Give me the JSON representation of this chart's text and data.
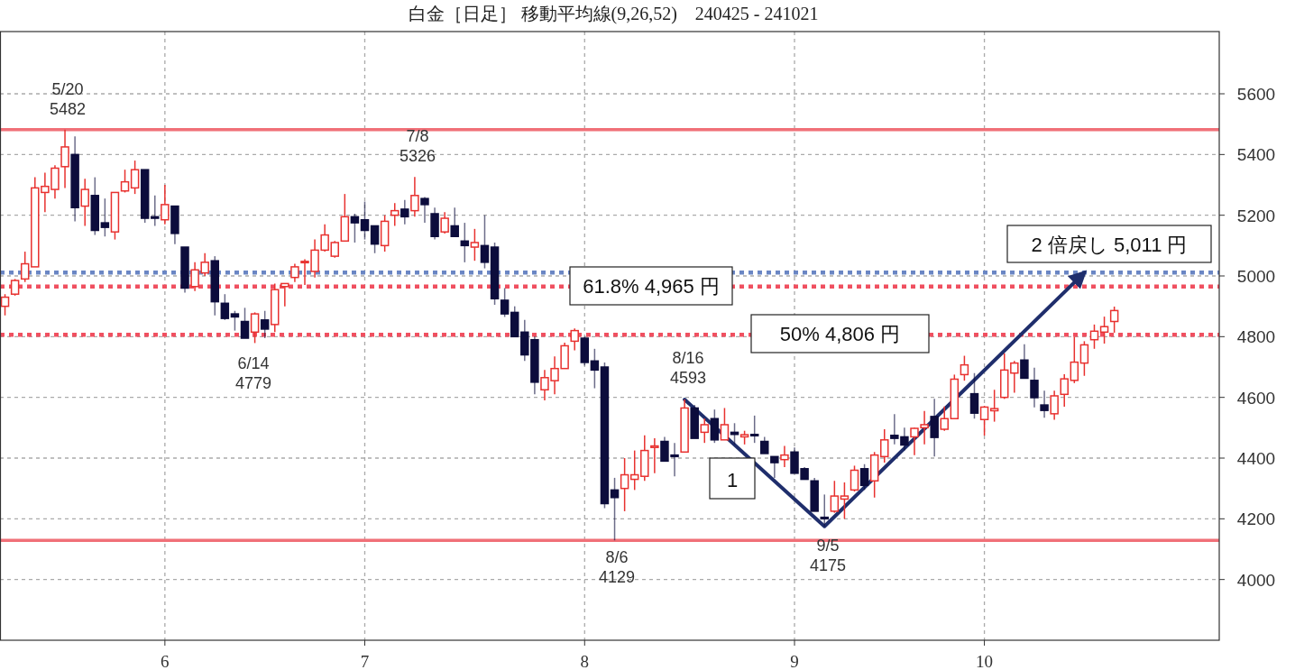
{
  "chart_data": {
    "type": "candlestick",
    "title": "白金［日足］ 移動平均線(9,26,52)　240425 - 241021",
    "categories": [
      null,
      null,
      null,
      null,
      null,
      null,
      null,
      null,
      null,
      null,
      null,
      null,
      null,
      null,
      null,
      null,
      "6",
      null,
      null,
      null,
      null,
      null,
      null,
      null,
      null,
      null,
      null,
      null,
      null,
      null,
      null,
      null,
      null,
      null,
      null,
      null,
      "7",
      null,
      null,
      null,
      null,
      null,
      null,
      null,
      null,
      null,
      null,
      null,
      null,
      null,
      null,
      null,
      null,
      null,
      null,
      null,
      null,
      null,
      "8",
      null,
      null,
      null,
      null,
      null,
      null,
      null,
      null,
      null,
      null,
      null,
      null,
      null,
      null,
      null,
      null,
      null,
      null,
      null,
      null,
      "9",
      null,
      null,
      null,
      null,
      null,
      null,
      null,
      null,
      null,
      null,
      null,
      null,
      null,
      null,
      null,
      null,
      null,
      null,
      "10",
      null,
      null,
      null,
      null,
      null,
      null,
      null,
      null,
      null,
      null,
      null,
      null,
      null,
      null,
      null,
      null,
      null,
      null,
      null,
      null,
      null,
      null,
      null
    ],
    "ohlc": [
      [
        4900,
        4940,
        4870,
        4930
      ],
      [
        4940,
        4990,
        4935,
        4985
      ],
      [
        4990,
        5080,
        4980,
        5040
      ],
      [
        5030,
        5325,
        5030,
        5290
      ],
      [
        5275,
        5340,
        5210,
        5295
      ],
      [
        5285,
        5365,
        5255,
        5355
      ],
      [
        5360,
        5482,
        5290,
        5425
      ],
      [
        5400,
        5460,
        5180,
        5225
      ],
      [
        5230,
        5320,
        5165,
        5285
      ],
      [
        5265,
        5325,
        5135,
        5150
      ],
      [
        5175,
        5255,
        5130,
        5160
      ],
      [
        5145,
        5275,
        5120,
        5275
      ],
      [
        5280,
        5350,
        5275,
        5310
      ],
      [
        5290,
        5380,
        5270,
        5350
      ],
      [
        5350,
        5350,
        5175,
        5190
      ],
      [
        5195,
        5265,
        5165,
        5190
      ],
      [
        5185,
        5300,
        5170,
        5235
      ],
      [
        5230,
        5230,
        5105,
        5140
      ],
      [
        5095,
        5095,
        4945,
        4960
      ],
      [
        4965,
        5045,
        4950,
        5020
      ],
      [
        5010,
        5075,
        5000,
        5045
      ],
      [
        5050,
        5065,
        4870,
        4915
      ],
      [
        4910,
        4940,
        4855,
        4860
      ],
      [
        4875,
        4885,
        4820,
        4865
      ],
      [
        4850,
        4895,
        4795,
        4795
      ],
      [
        4815,
        4880,
        4779,
        4875
      ],
      [
        4855,
        4885,
        4795,
        4825
      ],
      [
        4840,
        4975,
        4815,
        4955
      ],
      [
        4965,
        4975,
        4900,
        4975
      ],
      [
        4995,
        5040,
        4980,
        5030
      ],
      [
        5045,
        5055,
        4970,
        5048
      ],
      [
        5015,
        5120,
        4995,
        5085
      ],
      [
        5085,
        5170,
        5080,
        5135
      ],
      [
        5065,
        5115,
        5060,
        5110
      ],
      [
        5115,
        5270,
        5115,
        5195
      ],
      [
        5195,
        5205,
        5110,
        5175
      ],
      [
        5185,
        5245,
        5120,
        5150
      ],
      [
        5165,
        5165,
        5075,
        5105
      ],
      [
        5100,
        5200,
        5080,
        5180
      ],
      [
        5200,
        5240,
        5165,
        5215
      ],
      [
        5220,
        5250,
        5170,
        5195
      ],
      [
        5215,
        5326,
        5195,
        5265
      ],
      [
        5255,
        5260,
        5175,
        5235
      ],
      [
        5205,
        5225,
        5120,
        5130
      ],
      [
        5145,
        5210,
        5140,
        5190
      ],
      [
        5165,
        5225,
        5130,
        5130
      ],
      [
        5115,
        5175,
        5045,
        5100
      ],
      [
        5095,
        5155,
        5050,
        5110
      ],
      [
        5100,
        5200,
        5025,
        5045
      ],
      [
        5095,
        5110,
        4905,
        4925
      ],
      [
        4920,
        4960,
        4865,
        4875
      ],
      [
        4880,
        4900,
        4800,
        4800
      ],
      [
        4815,
        4855,
        4720,
        4740
      ],
      [
        4790,
        4800,
        4610,
        4650
      ],
      [
        4625,
        4690,
        4590,
        4665
      ],
      [
        4655,
        4735,
        4610,
        4695
      ],
      [
        4695,
        4780,
        4695,
        4770
      ],
      [
        4785,
        4827,
        4755,
        4820
      ],
      [
        4795,
        4800,
        4705,
        4715
      ],
      [
        4720,
        4760,
        4630,
        4690
      ],
      [
        4700,
        4715,
        4235,
        4250
      ],
      [
        4295,
        4335,
        4129,
        4270
      ],
      [
        4300,
        4400,
        4225,
        4345
      ],
      [
        4330,
        4425,
        4295,
        4345
      ],
      [
        4340,
        4475,
        4325,
        4425
      ],
      [
        4435,
        4465,
        4350,
        4440
      ],
      [
        4455,
        4470,
        4390,
        4390
      ],
      [
        4410,
        4450,
        4340,
        4405
      ],
      [
        4420,
        4593,
        4420,
        4565
      ],
      [
        4565,
        4575,
        4465,
        4465
      ],
      [
        4485,
        4530,
        4450,
        4510
      ],
      [
        4530,
        4560,
        4450,
        4460
      ],
      [
        4460,
        4565,
        4460,
        4510
      ],
      [
        4485,
        4515,
        4445,
        4478
      ],
      [
        4470,
        4490,
        4445,
        4477
      ],
      [
        4478,
        4540,
        4450,
        4475
      ],
      [
        4455,
        4470,
        4415,
        4415
      ],
      [
        4405,
        4405,
        4335,
        4385
      ],
      [
        4395,
        4440,
        4370,
        4410
      ],
      [
        4420,
        4435,
        4350,
        4350
      ],
      [
        4365,
        4370,
        4330,
        4330
      ],
      [
        4325,
        4335,
        4225,
        4225
      ],
      [
        4205,
        4280,
        4175,
        4200
      ],
      [
        4225,
        4325,
        4220,
        4275
      ],
      [
        4265,
        4320,
        4200,
        4275
      ],
      [
        4295,
        4375,
        4290,
        4360
      ],
      [
        4365,
        4380,
        4295,
        4310
      ],
      [
        4325,
        4420,
        4270,
        4410
      ],
      [
        4405,
        4495,
        4385,
        4460
      ],
      [
        4475,
        4545,
        4445,
        4465
      ],
      [
        4470,
        4500,
        4425,
        4443
      ],
      [
        4470,
        4500,
        4410,
        4498
      ],
      [
        4500,
        4555,
        4445,
        4510
      ],
      [
        4537,
        4595,
        4405,
        4468
      ],
      [
        4495,
        4570,
        4490,
        4530
      ],
      [
        4530,
        4675,
        4530,
        4660
      ],
      [
        4675,
        4737,
        4655,
        4707
      ],
      [
        4612,
        4680,
        4530,
        4548
      ],
      [
        4527,
        4572,
        4474,
        4568
      ],
      [
        4556,
        4625,
        4520,
        4563
      ],
      [
        4600,
        4745,
        4595,
        4690
      ],
      [
        4680,
        4720,
        4615,
        4713
      ],
      [
        4723,
        4775,
        4663,
        4663
      ],
      [
        4656,
        4698,
        4567,
        4599
      ],
      [
        4575,
        4622,
        4533,
        4557
      ],
      [
        4546,
        4622,
        4526,
        4605
      ],
      [
        4610,
        4676,
        4569,
        4661
      ],
      [
        4656,
        4800,
        4647,
        4716
      ],
      [
        4713,
        4785,
        4671,
        4773
      ],
      [
        4790,
        4840,
        4760,
        4818
      ],
      [
        4815,
        4866,
        4777,
        4833
      ],
      [
        4850,
        4899,
        4813,
        4886
      ],
      null,
      null,
      null,
      null,
      null,
      null,
      null,
      null,
      null,
      null
    ],
    "colors": [
      "#e8312f",
      "#e8312f",
      "#e8312f",
      "#e8312f",
      "#e8312f",
      "#e8312f",
      "#e8312f",
      "#0c0c3c",
      "#e8312f",
      "#0c0c3c",
      "#0c0c3c",
      "#e8312f",
      "#e8312f",
      "#e8312f",
      "#0c0c3c",
      "#0c0c3c",
      "#e8312f",
      "#0c0c3c",
      "#0c0c3c",
      "#e8312f",
      "#e8312f",
      "#0c0c3c",
      "#0c0c3c",
      "#0c0c3c",
      "#0c0c3c",
      "#e8312f",
      "#0c0c3c",
      "#e8312f",
      "#e8312f",
      "#e8312f",
      "#e8312f",
      "#e8312f",
      "#e8312f",
      "#e8312f",
      "#e8312f",
      "#0c0c3c",
      "#0c0c3c",
      "#0c0c3c",
      "#e8312f",
      "#e8312f",
      "#0c0c3c",
      "#e8312f",
      "#0c0c3c",
      "#0c0c3c",
      "#e8312f",
      "#0c0c3c",
      "#0c0c3c",
      "#e8312f",
      "#0c0c3c",
      "#0c0c3c",
      "#0c0c3c",
      "#0c0c3c",
      "#0c0c3c",
      "#0c0c3c",
      "#e8312f",
      "#e8312f",
      "#e8312f",
      "#e8312f",
      "#0c0c3c",
      "#0c0c3c",
      "#0c0c3c",
      "#0c0c3c",
      "#e8312f",
      "#e8312f",
      "#e8312f",
      "#e8312f",
      "#0c0c3c",
      "#0c0c3c",
      "#e8312f",
      "#0c0c3c",
      "#e8312f",
      "#0c0c3c",
      "#e8312f",
      "#0c0c3c",
      "#e8312f",
      "#0c0c3c",
      "#0c0c3c",
      "#0c0c3c",
      "#e8312f",
      "#0c0c3c",
      "#0c0c3c",
      "#0c0c3c",
      "#0c0c3c",
      "#e8312f",
      "#e8312f",
      "#e8312f",
      "#0c0c3c",
      "#e8312f",
      "#e8312f",
      "#0c0c3c",
      "#0c0c3c",
      "#e8312f",
      "#e8312f",
      "#0c0c3c",
      "#e8312f",
      "#e8312f",
      "#e8312f",
      "#0c0c3c",
      "#e8312f",
      "#e8312f",
      "#e8312f",
      "#e8312f",
      "#0c0c3c",
      "#0c0c3c",
      "#0c0c3c",
      "#e8312f",
      "#e8312f",
      "#e8312f",
      "#e8312f",
      "#e8312f",
      "#e8312f",
      "#e8312f",
      null,
      null,
      null,
      null,
      null,
      null,
      null,
      null,
      null,
      null
    ],
    "series": [
      {
        "type": "line",
        "color": "#1f2e6c",
        "values": [
          null,
          null,
          null,
          null,
          null,
          null,
          null,
          null,
          null,
          null,
          null,
          null,
          null,
          null,
          null,
          null,
          null,
          null,
          null,
          null,
          null,
          null,
          null,
          null,
          null,
          null,
          null,
          null,
          null,
          null,
          null,
          null,
          null,
          null,
          null,
          null,
          null,
          null,
          null,
          null,
          null,
          null,
          null,
          null,
          null,
          null,
          null,
          null,
          null,
          null,
          null,
          null,
          null,
          null,
          null,
          null,
          null,
          null,
          null,
          null,
          null,
          null,
          null,
          null,
          null,
          null,
          null,
          null,
          4593,
          null,
          null,
          null,
          null,
          null,
          null,
          null,
          null,
          null,
          null,
          null,
          null,
          null,
          4175,
          null,
          null,
          null,
          null,
          null,
          null,
          null,
          null,
          null,
          null,
          null,
          null,
          null,
          null,
          null,
          null,
          null,
          null,
          null,
          null,
          null,
          null,
          null,
          null,
          null,
          5011,
          null,
          null,
          null,
          null,
          null,
          null,
          null,
          null,
          null,
          null,
          null,
          null,
          null
        ]
      }
    ],
    "ylim": [
      3800,
      5805
    ],
    "yticks": [
      4000,
      4200,
      4400,
      4600,
      4800,
      5000,
      5200,
      5400,
      5600
    ],
    "grid": true,
    "ref_lines": [
      {
        "axis": "y",
        "value": 5482,
        "color": "#f07078",
        "line_style": "solid"
      },
      {
        "axis": "y",
        "value": 4129,
        "color": "#f07078",
        "line_style": "solid"
      },
      {
        "axis": "y",
        "value": 4965,
        "color": "#f05060",
        "line_style": "dotted",
        "label": "61.8% 4,965 円"
      },
      {
        "axis": "y",
        "value": 4806,
        "color": "#f05060",
        "line_style": "dotted",
        "label": "50% 4,806 円"
      },
      {
        "axis": "y",
        "value": 5011,
        "color": "#6a86c4",
        "line_style": "dotted",
        "label": "2 倍戻し 5,011 円"
      }
    ],
    "annotations": [
      "5/20\n5482",
      "7/8\n5326",
      "6/14\n4779",
      "8/6\n4129",
      "8/16\n4593",
      "9/5\n4175",
      "1"
    ]
  }
}
